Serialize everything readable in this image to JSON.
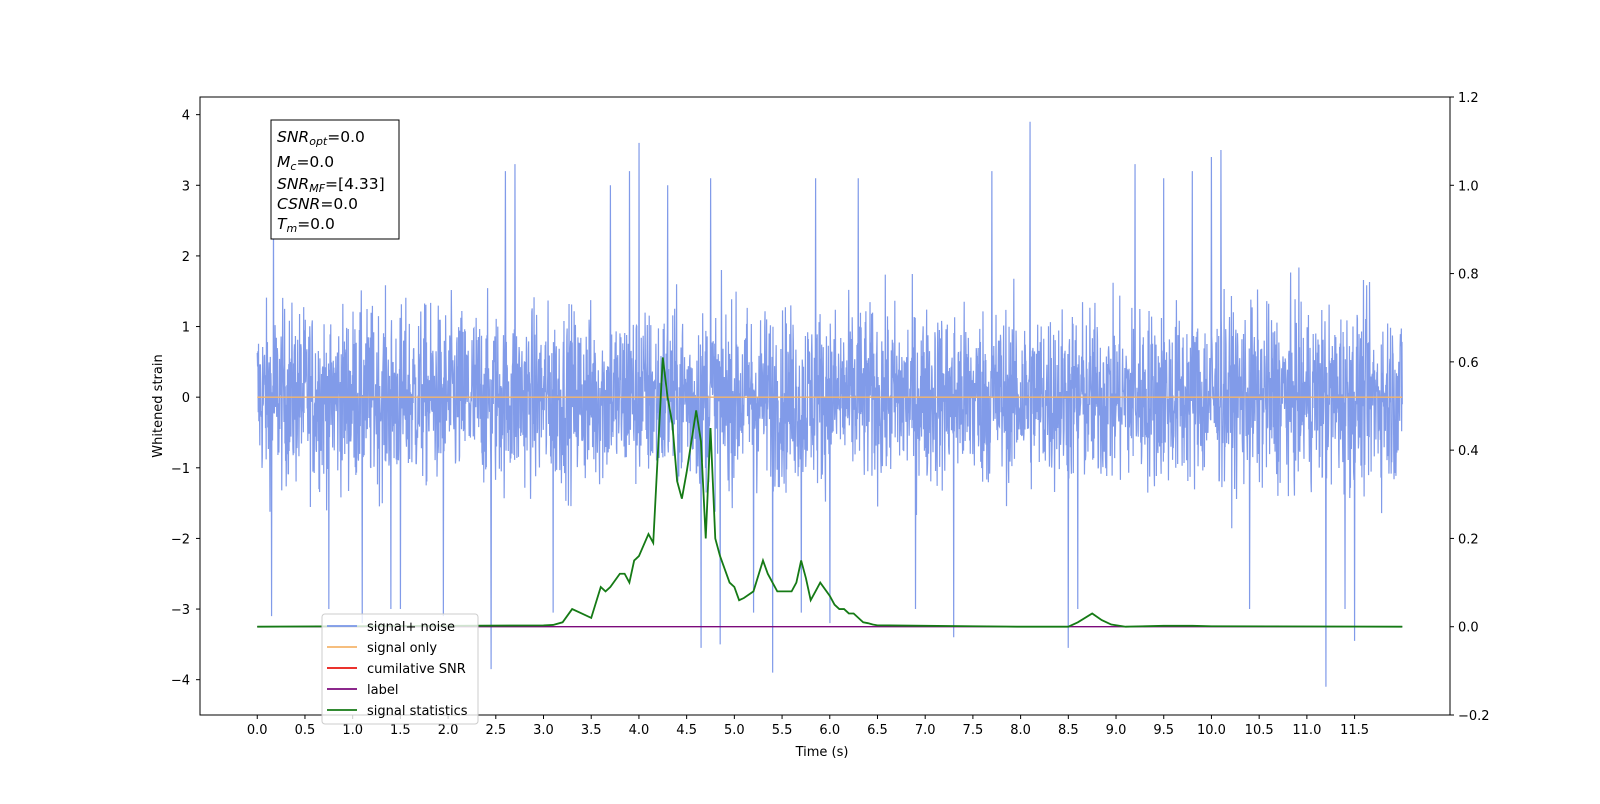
{
  "chart_data": {
    "type": "line",
    "xlabel": "Time (s)",
    "ylabel": "Whitened strain",
    "xlim": [
      -0.6,
      12.5
    ],
    "ylim": [
      -4.5,
      4.25
    ],
    "ylim_right": [
      -0.2,
      1.2
    ],
    "x_ticks": [
      "0.0",
      "0.5",
      "1.0",
      "1.5",
      "2.0",
      "2.5",
      "3.0",
      "3.5",
      "4.0",
      "4.5",
      "5.0",
      "5.5",
      "6.0",
      "6.5",
      "7.0",
      "7.5",
      "8.0",
      "8.5",
      "9.0",
      "9.5",
      "10.0",
      "10.5",
      "11.0",
      "11.5"
    ],
    "y_ticks_left": [
      "4",
      "3",
      "2",
      "1",
      "0",
      "−1",
      "−2",
      "−3",
      "−4"
    ],
    "y_ticks_right": [
      "1.2",
      "1.0",
      "0.8",
      "0.6",
      "0.4",
      "0.2",
      "0.0",
      "−0.2"
    ],
    "grid": false,
    "legend_position": "bottom-left",
    "info_box": {
      "snr_opt": {
        "sym": "SNR",
        "sub": "opt",
        "val": "=0.0"
      },
      "mc": {
        "sym": "M",
        "sub": "c",
        "val": "=0.0"
      },
      "snr_mf": {
        "sym": "SNR",
        "sub": "MF",
        "val": "=[4.33]"
      },
      "csnr": {
        "sym": "CSNR",
        "sub": "",
        "val": "=0.0"
      },
      "tm": {
        "sym": "T",
        "sub": "m",
        "val": "=0.0"
      }
    },
    "series": [
      {
        "name": "signal+ noise",
        "color": "#7a96e8",
        "axis": "left",
        "x_range": [
          0.0,
          12.0
        ],
        "note_values": "dense noise trace, typical range -1.9 to 2.0",
        "spikes": [
          [
            0.15,
            -3.1
          ],
          [
            0.17,
            2.6
          ],
          [
            0.75,
            -3.0
          ],
          [
            1.1,
            -3.2
          ],
          [
            1.4,
            -3.0
          ],
          [
            1.5,
            -3.0
          ],
          [
            1.95,
            -3.1
          ],
          [
            2.45,
            -3.85
          ],
          [
            2.6,
            3.2
          ],
          [
            2.7,
            3.3
          ],
          [
            3.1,
            -3.05
          ],
          [
            3.7,
            3.0
          ],
          [
            3.9,
            3.2
          ],
          [
            4.0,
            3.6
          ],
          [
            4.3,
            3.0
          ],
          [
            4.65,
            -3.55
          ],
          [
            4.75,
            3.1
          ],
          [
            4.85,
            -3.5
          ],
          [
            5.2,
            -3.05
          ],
          [
            5.4,
            -3.9
          ],
          [
            5.7,
            -3.05
          ],
          [
            5.85,
            3.1
          ],
          [
            6.0,
            -3.2
          ],
          [
            6.3,
            3.1
          ],
          [
            6.9,
            -3.0
          ],
          [
            7.3,
            -3.4
          ],
          [
            7.7,
            3.2
          ],
          [
            8.1,
            3.9
          ],
          [
            8.5,
            -3.55
          ],
          [
            8.6,
            -3.0
          ],
          [
            9.2,
            3.3
          ],
          [
            9.5,
            3.1
          ],
          [
            9.8,
            3.2
          ],
          [
            10.0,
            3.4
          ],
          [
            10.1,
            3.5
          ],
          [
            10.4,
            -3.0
          ],
          [
            11.2,
            -4.1
          ],
          [
            11.4,
            -3.0
          ],
          [
            11.5,
            -3.45
          ]
        ]
      },
      {
        "name": "signal only",
        "color": "#f5b56b",
        "axis": "left",
        "x": [
          0.0,
          12.0
        ],
        "y": [
          0.0,
          0.0
        ]
      },
      {
        "name": "cumilative SNR",
        "color": "#e8150f",
        "axis": "right",
        "x": [],
        "y": []
      },
      {
        "name": "label",
        "color": "#7b0a7b",
        "axis": "right",
        "x": [
          0.0,
          12.0
        ],
        "y": [
          0.0,
          0.0
        ]
      },
      {
        "name": "signal statistics",
        "color": "#157a15",
        "axis": "right",
        "x": [
          0.0,
          3.0,
          3.1,
          3.2,
          3.3,
          3.4,
          3.5,
          3.6,
          3.65,
          3.7,
          3.8,
          3.85,
          3.9,
          3.95,
          4.0,
          4.1,
          4.15,
          4.25,
          4.3,
          4.35,
          4.4,
          4.45,
          4.5,
          4.6,
          4.65,
          4.7,
          4.75,
          4.8,
          4.85,
          4.9,
          4.95,
          5.0,
          5.05,
          5.1,
          5.2,
          5.3,
          5.35,
          5.4,
          5.45,
          5.5,
          5.55,
          5.6,
          5.65,
          5.7,
          5.75,
          5.8,
          5.85,
          5.9,
          6.0,
          6.05,
          6.1,
          6.15,
          6.2,
          6.25,
          6.3,
          6.35,
          6.4,
          6.45,
          6.5,
          6.6,
          7.0,
          7.5,
          8.0,
          8.5,
          8.6,
          8.75,
          8.85,
          8.95,
          9.1,
          9.5,
          9.8,
          10.0,
          12.0
        ],
        "y": [
          0.0,
          0.003,
          0.004,
          0.01,
          0.04,
          0.03,
          0.02,
          0.09,
          0.08,
          0.09,
          0.12,
          0.12,
          0.1,
          0.15,
          0.16,
          0.21,
          0.19,
          0.61,
          0.52,
          0.46,
          0.33,
          0.29,
          0.35,
          0.49,
          0.42,
          0.2,
          0.45,
          0.2,
          0.16,
          0.13,
          0.1,
          0.09,
          0.06,
          0.065,
          0.08,
          0.15,
          0.12,
          0.1,
          0.08,
          0.08,
          0.08,
          0.08,
          0.1,
          0.15,
          0.11,
          0.06,
          0.08,
          0.1,
          0.07,
          0.05,
          0.04,
          0.04,
          0.03,
          0.03,
          0.02,
          0.01,
          0.008,
          0.005,
          0.003,
          0.003,
          0.002,
          0.001,
          0.0,
          0.0,
          0.01,
          0.03,
          0.015,
          0.005,
          0.0,
          0.002,
          0.002,
          0.001,
          0.0
        ]
      }
    ]
  }
}
